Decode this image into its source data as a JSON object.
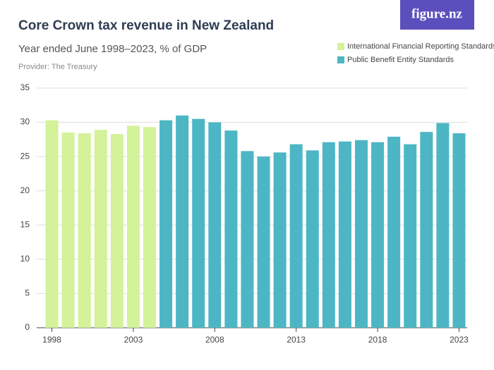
{
  "logo": "figure.nz",
  "chart_data": {
    "type": "bar",
    "title": "Core Crown tax revenue in New Zealand",
    "subtitle": "Year ended June 1998–2023, % of GDP",
    "provider": "Provider: The Treasury",
    "categories": [
      "1998",
      null,
      null,
      null,
      null,
      "2003",
      null,
      null,
      null,
      null,
      "2008",
      null,
      null,
      null,
      null,
      "2013",
      null,
      null,
      null,
      null,
      "2018",
      null,
      null,
      null,
      null,
      "2023"
    ],
    "series": [
      {
        "name": "International Financial Reporting Standards",
        "color": "#d4f29a",
        "values": [
          30.3,
          28.5,
          28.4,
          28.9,
          28.3,
          29.5,
          29.3,
          null,
          null,
          null,
          null,
          null,
          null,
          null,
          null,
          null,
          null,
          null,
          null,
          null,
          null,
          null,
          null,
          null,
          null,
          null
        ]
      },
      {
        "name": "Public Benefit Entity Standards",
        "color": "#4db6c4",
        "values": [
          null,
          null,
          null,
          null,
          null,
          null,
          null,
          30.3,
          31.0,
          30.5,
          30.0,
          28.8,
          25.8,
          25.0,
          25.6,
          26.8,
          25.9,
          27.1,
          27.2,
          27.4,
          27.1,
          27.9,
          26.8,
          28.6,
          29.9,
          28.4
        ]
      }
    ],
    "ylim": [
      0,
      35
    ],
    "yticks": [
      0,
      5,
      10,
      15,
      20,
      25,
      30,
      35
    ],
    "grid": true,
    "legend": "top-right"
  }
}
